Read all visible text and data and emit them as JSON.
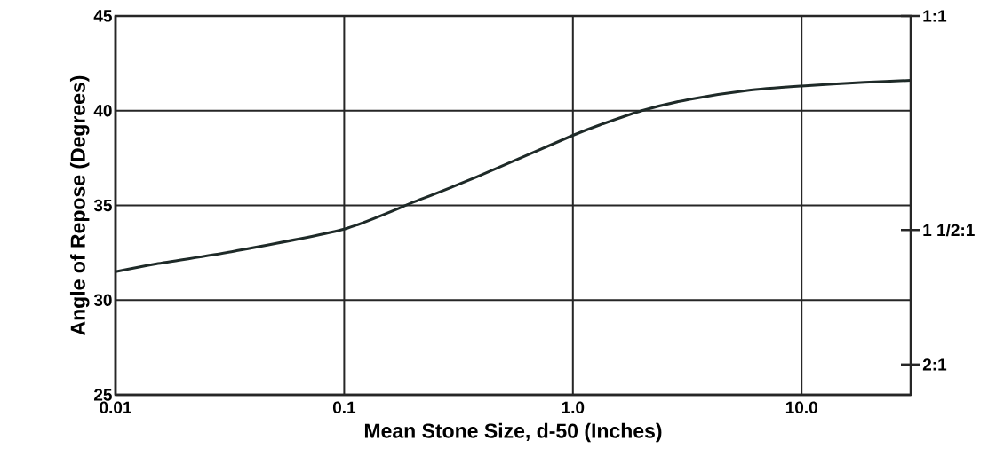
{
  "chart_data": {
    "type": "line",
    "xlabel": "Mean Stone Size, d-50 (Inches)",
    "ylabel": "Angle of Repose (Degrees)",
    "log": "x",
    "grid": true,
    "x": [
      0.01,
      0.0148,
      0.0336,
      0.1,
      0.204,
      0.38,
      1.0,
      1.35,
      2.0,
      3.24,
      5.8,
      10,
      18.8,
      30
    ],
    "series": [
      {
        "color": "#1e2a28",
        "values": [
          31.5,
          31.9,
          32.6,
          33.75,
          35.2,
          36.5,
          38.7,
          39.3,
          40.0,
          40.6,
          41.07,
          41.3,
          41.5,
          41.6
        ]
      }
    ],
    "xlim": [
      0.01,
      30
    ],
    "ylim": [
      25,
      45
    ],
    "xticks": [
      0.01,
      0.1,
      {
        "value": 1,
        "label": "1.0"
      },
      {
        "value": 10,
        "label": "10.0"
      }
    ],
    "yticks": [
      25,
      30,
      35,
      40,
      45
    ],
    "annotations": [
      "1:1",
      "1 1/2:1",
      "2:1"
    ]
  }
}
